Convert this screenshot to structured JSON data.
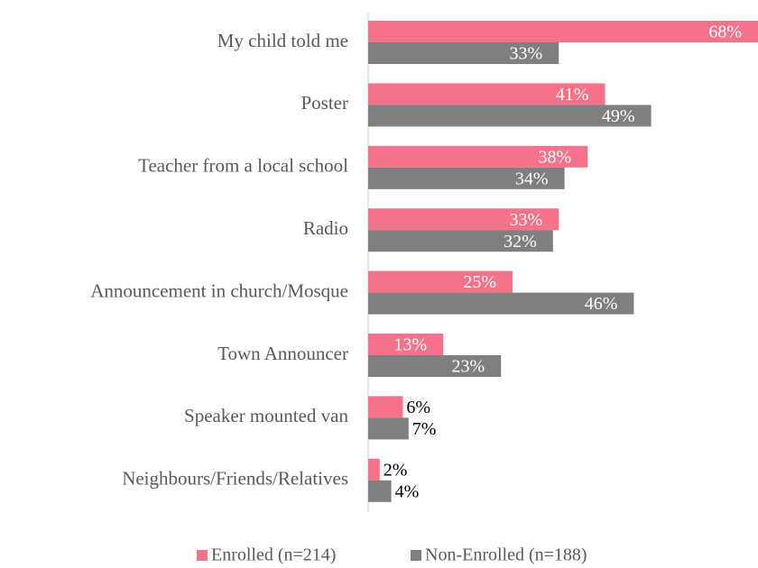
{
  "chart_data": {
    "type": "bar",
    "orientation": "horizontal",
    "categories": [
      "My child told me",
      "Poster",
      "Teacher from a local school",
      "Radio",
      "Announcement in church/Mosque",
      "Town Announcer",
      "Speaker mounted van",
      "Neighbours/Friends/Relatives"
    ],
    "series": [
      {
        "name": "Enrolled (n=214)",
        "color": "#f4738a",
        "values": [
          68,
          41,
          38,
          33,
          25,
          13,
          6,
          2
        ],
        "value_labels": [
          "68%",
          "41%",
          "38%",
          "33%",
          "25%",
          "13%",
          "6%",
          "2%"
        ]
      },
      {
        "name": "Non-Enrolled (n=188)",
        "color": "#7f7f7f",
        "values": [
          33,
          49,
          34,
          32,
          46,
          23,
          7,
          4
        ],
        "value_labels": [
          "33%",
          "49%",
          "34%",
          "32%",
          "46%",
          "23%",
          "7%",
          "4%"
        ]
      }
    ]
  }
}
